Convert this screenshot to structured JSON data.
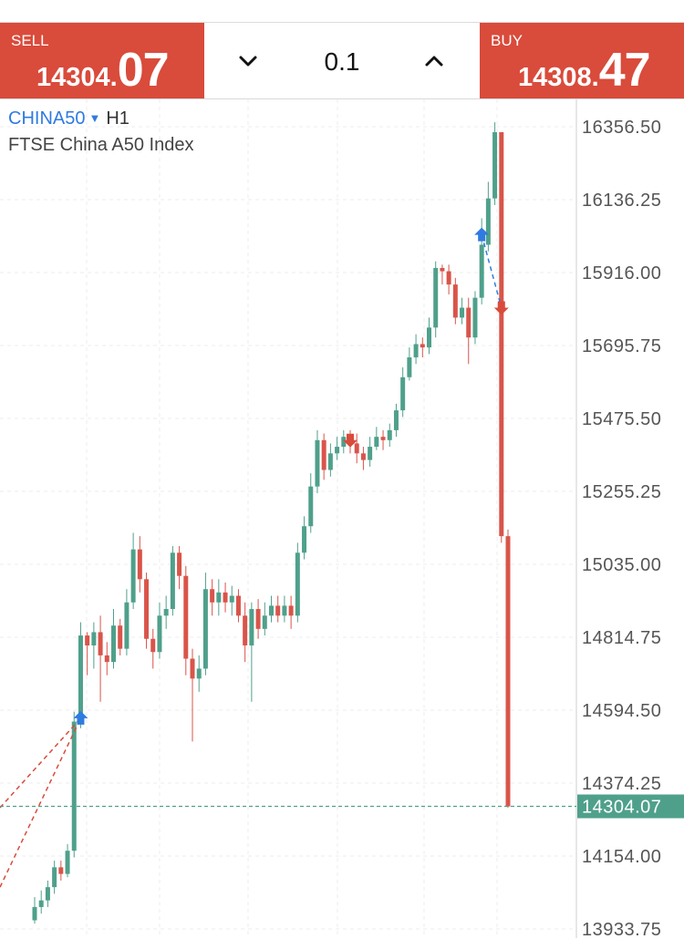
{
  "trade": {
    "sell": {
      "label": "SELL",
      "price_main": "14304.",
      "price_big": "07"
    },
    "buy": {
      "label": "BUY",
      "price_main": "14308.",
      "price_big": "47"
    },
    "quantity": "0.1"
  },
  "chart": {
    "symbol": "CHINA50",
    "timeframe": "H1",
    "instrument_name": "FTSE China A50 Index",
    "current_price_label": "14304.07",
    "colors": {
      "up": "#4fa08b",
      "down": "#d9544a",
      "buy_marker": "#2f7be0",
      "sell_marker": "#d94b3b"
    }
  },
  "chart_data": {
    "type": "candlestick",
    "y_axis_ticks": [
      "16356.50",
      "16136.25",
      "15916.00",
      "15695.75",
      "15475.50",
      "15255.25",
      "15035.00",
      "14814.75",
      "14594.50",
      "14374.25",
      "14154.00",
      "13933.75"
    ],
    "ylim": [
      13900,
      16420
    ],
    "current_price": 14304.07,
    "candles": [
      [
        13960,
        14000,
        13950,
        14030
      ],
      [
        14000,
        14020,
        13980,
        14050
      ],
      [
        14020,
        14060,
        14000,
        14080
      ],
      [
        14060,
        14120,
        14040,
        14140
      ],
      [
        14120,
        14100,
        14080,
        14140
      ],
      [
        14100,
        14170,
        14090,
        14190
      ],
      [
        14170,
        14560,
        14150,
        14590
      ],
      [
        14560,
        14820,
        14540,
        14860
      ],
      [
        14820,
        14790,
        14700,
        14830
      ],
      [
        14790,
        14830,
        14720,
        14860
      ],
      [
        14830,
        14760,
        14620,
        14880
      ],
      [
        14760,
        14740,
        14700,
        14800
      ],
      [
        14740,
        14850,
        14720,
        14900
      ],
      [
        14850,
        14780,
        14760,
        14870
      ],
      [
        14780,
        14920,
        14760,
        14960
      ],
      [
        14920,
        15080,
        14900,
        15130
      ],
      [
        15080,
        14990,
        14950,
        15120
      ],
      [
        14990,
        14810,
        14780,
        15010
      ],
      [
        14810,
        14770,
        14720,
        14840
      ],
      [
        14770,
        14880,
        14750,
        14920
      ],
      [
        14880,
        14900,
        14840,
        14940
      ],
      [
        14900,
        15070,
        14880,
        15090
      ],
      [
        15070,
        15000,
        14960,
        15090
      ],
      [
        15000,
        14750,
        14700,
        15030
      ],
      [
        14750,
        14690,
        14500,
        14780
      ],
      [
        14690,
        14720,
        14650,
        14760
      ],
      [
        14720,
        14960,
        14700,
        15010
      ],
      [
        14960,
        14920,
        14880,
        14990
      ],
      [
        14920,
        14950,
        14880,
        14990
      ],
      [
        14950,
        14920,
        14890,
        14980
      ],
      [
        14920,
        14940,
        14880,
        14970
      ],
      [
        14940,
        14880,
        14860,
        14960
      ],
      [
        14880,
        14790,
        14740,
        14920
      ],
      [
        14790,
        14900,
        14620,
        14920
      ],
      [
        14900,
        14840,
        14810,
        14930
      ],
      [
        14840,
        14880,
        14820,
        14920
      ],
      [
        14880,
        14910,
        14860,
        14940
      ],
      [
        14910,
        14880,
        14860,
        14940
      ],
      [
        14880,
        14910,
        14860,
        14940
      ],
      [
        14910,
        14880,
        14840,
        14940
      ],
      [
        14880,
        15070,
        14860,
        15100
      ],
      [
        15070,
        15150,
        15050,
        15180
      ],
      [
        15150,
        15270,
        15130,
        15310
      ],
      [
        15270,
        15410,
        15250,
        15440
      ],
      [
        15410,
        15320,
        15290,
        15430
      ],
      [
        15320,
        15370,
        15300,
        15400
      ],
      [
        15370,
        15390,
        15350,
        15420
      ],
      [
        15390,
        15420,
        15370,
        15440
      ],
      [
        15420,
        15400,
        15370,
        15440
      ],
      [
        15400,
        15370,
        15340,
        15430
      ],
      [
        15370,
        15350,
        15320,
        15390
      ],
      [
        15350,
        15390,
        15330,
        15420
      ],
      [
        15390,
        15420,
        15380,
        15450
      ],
      [
        15420,
        15410,
        15380,
        15440
      ],
      [
        15410,
        15440,
        15390,
        15460
      ],
      [
        15440,
        15500,
        15420,
        15520
      ],
      [
        15500,
        15600,
        15480,
        15630
      ],
      [
        15600,
        15660,
        15590,
        15690
      ],
      [
        15660,
        15700,
        15640,
        15730
      ],
      [
        15700,
        15690,
        15660,
        15720
      ],
      [
        15690,
        15750,
        15670,
        15780
      ],
      [
        15750,
        15930,
        15720,
        15950
      ],
      [
        15930,
        15920,
        15880,
        15940
      ],
      [
        15920,
        15880,
        15850,
        15940
      ],
      [
        15880,
        15780,
        15760,
        15900
      ],
      [
        15780,
        15810,
        15760,
        15840
      ],
      [
        15810,
        15720,
        15640,
        15840
      ],
      [
        15720,
        15840,
        15700,
        15860
      ],
      [
        15840,
        16000,
        15820,
        16080
      ],
      [
        16000,
        16140,
        15980,
        16190
      ],
      [
        16140,
        16340,
        16120,
        16370
      ],
      [
        16340,
        15120,
        15100,
        16340
      ],
      [
        15120,
        14304,
        14300,
        15140
      ]
    ],
    "trade_markers": [
      {
        "type": "buy",
        "price": 14570,
        "candle": 7
      },
      {
        "type": "sell",
        "price": 15410,
        "candle": 48
      },
      {
        "type": "buy",
        "price": 16030,
        "candle": 68
      },
      {
        "type": "sell",
        "price": 15810,
        "candle": 71
      }
    ]
  }
}
